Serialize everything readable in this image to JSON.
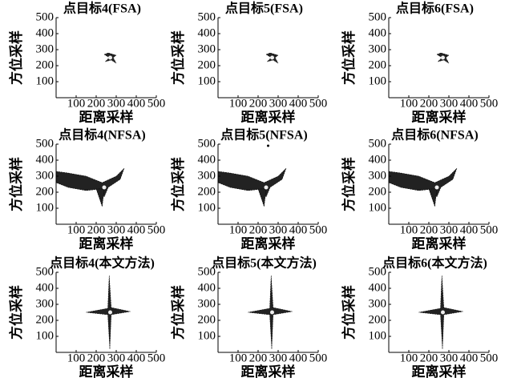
{
  "chart_data": [
    {
      "type": "contour",
      "title": "点目标4(FSA)",
      "xlabel": "距离采样",
      "ylabel": "方位采样",
      "xlim": [
        0,
        500
      ],
      "ylim": [
        0,
        500
      ],
      "xticks": [
        100,
        200,
        300,
        400,
        500
      ],
      "yticks": [
        100,
        200,
        300,
        400,
        500
      ]
    },
    {
      "type": "contour",
      "title": "点目标5(FSA)",
      "xlabel": "距离采样",
      "ylabel": "方位采样",
      "xlim": [
        0,
        500
      ],
      "ylim": [
        0,
        500
      ],
      "xticks": [
        100,
        200,
        300,
        400,
        500
      ],
      "yticks": [
        100,
        200,
        300,
        400,
        500
      ]
    },
    {
      "type": "contour",
      "title": "点目标6(FSA)",
      "xlabel": "距离采样",
      "ylabel": "方位采样",
      "xlim": [
        0,
        500
      ],
      "ylim": [
        0,
        500
      ],
      "xticks": [
        100,
        200,
        300,
        400,
        500
      ],
      "yticks": [
        100,
        200,
        300,
        400,
        500
      ]
    },
    {
      "type": "contour",
      "title": "点目标4(NFSA)",
      "xlabel": "距离采样",
      "ylabel": "方位采样",
      "xlim": [
        0,
        500
      ],
      "ylim": [
        0,
        500
      ],
      "xticks": [
        100,
        200,
        300,
        400,
        500
      ],
      "yticks": [
        100,
        200,
        300,
        400,
        500
      ]
    },
    {
      "type": "contour",
      "title": "点目标5(NFSA)",
      "xlabel": "距离采样",
      "ylabel": "方位采样",
      "xlim": [
        0,
        500
      ],
      "ylim": [
        0,
        500
      ],
      "xticks": [
        100,
        200,
        300,
        400,
        500
      ],
      "yticks": [
        100,
        200,
        300,
        400,
        500
      ]
    },
    {
      "type": "contour",
      "title": "点目标6(NFSA)",
      "xlabel": "距离采样",
      "ylabel": "方位采样",
      "xlim": [
        0,
        500
      ],
      "ylim": [
        0,
        500
      ],
      "xticks": [
        100,
        200,
        300,
        400,
        500
      ],
      "yticks": [
        100,
        200,
        300,
        400,
        500
      ]
    },
    {
      "type": "contour",
      "title": "点目标4(本文方法)",
      "xlabel": "距离采样",
      "ylabel": "方位采样",
      "xlim": [
        0,
        500
      ],
      "ylim": [
        0,
        500
      ],
      "xticks": [
        100,
        200,
        300,
        400,
        500
      ],
      "yticks": [
        100,
        200,
        300,
        400,
        500
      ]
    },
    {
      "type": "contour",
      "title": "点目标5(本文方法)",
      "xlabel": "距离采样",
      "ylabel": "方位采样",
      "xlim": [
        0,
        500
      ],
      "ylim": [
        0,
        500
      ],
      "xticks": [
        100,
        200,
        300,
        400,
        500
      ],
      "yticks": [
        100,
        200,
        300,
        400,
        500
      ]
    },
    {
      "type": "contour",
      "title": "点目标6(本文方法)",
      "xlabel": "距离采样",
      "ylabel": "方位采样",
      "xlim": [
        0,
        500
      ],
      "ylim": [
        0,
        500
      ],
      "xticks": [
        100,
        200,
        300,
        400,
        500
      ],
      "yticks": [
        100,
        200,
        300,
        400,
        500
      ]
    }
  ]
}
